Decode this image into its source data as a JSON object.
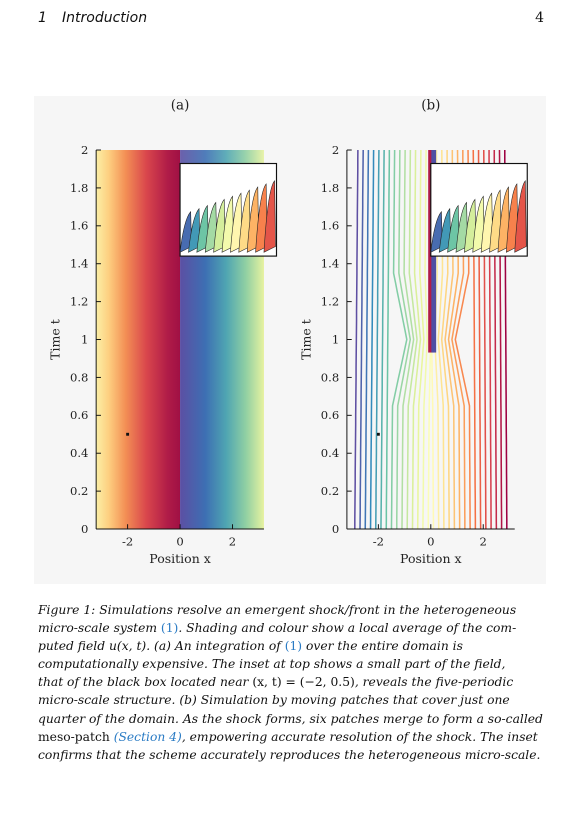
{
  "header": {
    "section_number": "1",
    "section_title": "Introduction",
    "page_number": "4"
  },
  "figure": {
    "panels": [
      {
        "label": "(a)",
        "xlabel": "Position x",
        "ylabel": "Time t",
        "xticks": [
          "-2",
          "0",
          "2"
        ],
        "yticks": [
          "0",
          "0.2",
          "0.4",
          "0.6",
          "0.8",
          "1",
          "1.2",
          "1.4",
          "1.6",
          "1.8",
          "2"
        ]
      },
      {
        "label": "(b)",
        "xlabel": "Position x",
        "ylabel": "Time t",
        "xticks": [
          "-2",
          "0",
          "2"
        ],
        "yticks": [
          "0",
          "0.2",
          "0.4",
          "0.6",
          "0.8",
          "1",
          "1.2",
          "1.4",
          "1.6",
          "1.8",
          "2"
        ]
      }
    ]
  },
  "chart_data": [
    {
      "type": "heatmap",
      "title": "(a)",
      "xlabel": "Position x",
      "ylabel": "Time t",
      "xlim": [
        -3.2,
        3.2
      ],
      "ylim": [
        0,
        2
      ],
      "grid": false,
      "shock_position_x": 0,
      "marker_point": [
        -2,
        0.5
      ],
      "colormap": [
        "#9e0142",
        "#d53e4f",
        "#f46d43",
        "#fdae61",
        "#fee08b",
        "#ffffbf",
        "#e6f598",
        "#abdda4",
        "#66c2a5",
        "#3288bd",
        "#5e4fa2"
      ]
    },
    {
      "type": "line",
      "title": "(b)",
      "xlabel": "Position x",
      "ylabel": "Time t",
      "xlim": [
        -3.2,
        3.2
      ],
      "ylim": [
        0,
        2
      ],
      "grid": false,
      "marker_point": [
        -2,
        0.5
      ],
      "merge_time_t": 1.0,
      "colormap": [
        "#9e0142",
        "#d53e4f",
        "#f46d43",
        "#fdae61",
        "#fee08b",
        "#ffffbf",
        "#e6f598",
        "#abdda4",
        "#66c2a5",
        "#3288bd",
        "#5e4fa2"
      ]
    }
  ],
  "caption": {
    "lines": [
      [
        {
          "t": "Figure 1: Simulations resolve an emergent shock/front in the heterogeneous"
        }
      ],
      [
        {
          "t": "micro-scale system "
        },
        {
          "t": "(1)",
          "c": "ref"
        },
        {
          "t": ". Shading and colour show a local average of the com-"
        }
      ],
      [
        {
          "t": "puted field "
        },
        {
          "t": "u(x, t)"
        },
        {
          "t": ".      (a) An integration of "
        },
        {
          "t": "(1)",
          "c": "ref"
        },
        {
          "t": " over the entire domain is"
        }
      ],
      [
        {
          "t": "computationally expensive. The inset at top shows a small part of the field,"
        }
      ],
      [
        {
          "t": "that of the black box located near "
        },
        {
          "t": "(x, t) = (−2, 0.5)",
          "c": "up"
        },
        {
          "t": ", reveals the five-periodic"
        }
      ],
      [
        {
          "t": "micro-scale structure.      (b) Simulation by moving patches that cover just one"
        }
      ],
      [
        {
          "t": "quarter of the domain. As the shock forms, six patches merge to form a so-called"
        }
      ],
      [
        {
          "t": "meso-patch",
          "c": "up"
        },
        {
          "t": " "
        },
        {
          "t": "(Section 4)",
          "c": "ref-it"
        },
        {
          "t": ", empowering accurate resolution of the shock. The inset"
        }
      ],
      [
        {
          "t": "confirms that the scheme accurately reproduces the heterogeneous micro-scale."
        }
      ]
    ]
  }
}
